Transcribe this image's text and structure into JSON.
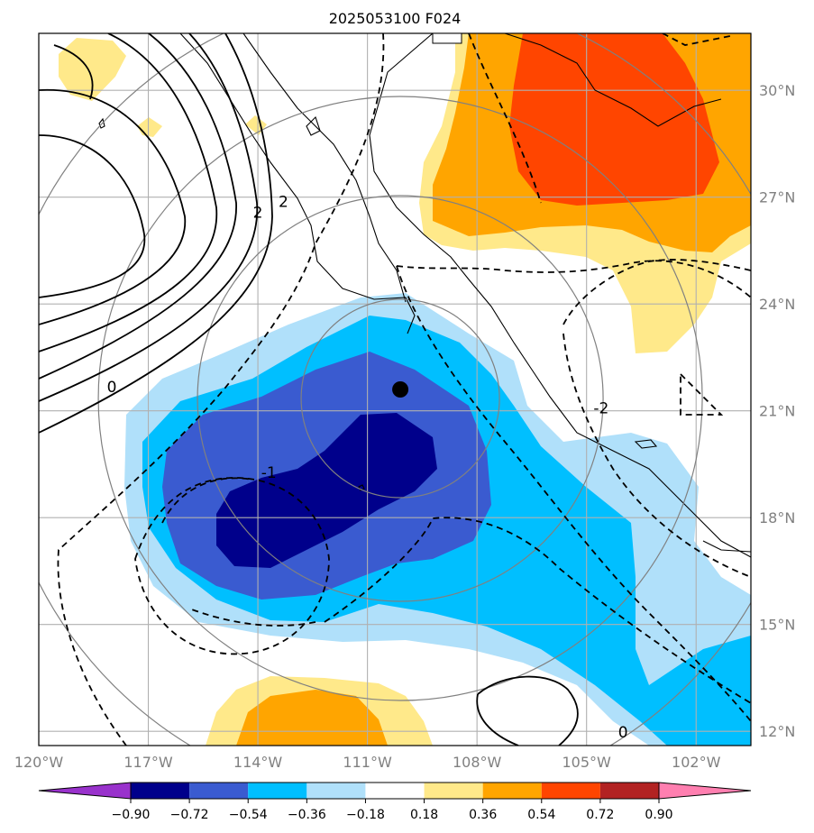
{
  "title": "2025053100 F024",
  "map": {
    "lon_range": [
      -120,
      -100.5
    ],
    "lat_range": [
      11.6,
      31.6
    ],
    "gridlines": true,
    "storm_center": {
      "lon": -110.1,
      "lat": 21.6
    },
    "lat_ticks": [
      {
        "value": 12,
        "label": "12°N"
      },
      {
        "value": 15,
        "label": "15°N"
      },
      {
        "value": 18,
        "label": "18°N"
      },
      {
        "value": 21,
        "label": "21°N"
      },
      {
        "value": 24,
        "label": "24°N"
      },
      {
        "value": 27,
        "label": "27°N"
      },
      {
        "value": 30,
        "label": "30°N"
      }
    ],
    "lon_ticks": [
      {
        "value": -120,
        "label": "120°W"
      },
      {
        "value": -117,
        "label": "117°W"
      },
      {
        "value": -114,
        "label": "114°W"
      },
      {
        "value": -111,
        "label": "111°W"
      },
      {
        "value": -108,
        "label": "108°W"
      },
      {
        "value": -105,
        "label": "105°W"
      },
      {
        "value": -102,
        "label": "102°W"
      }
    ],
    "contour_labels": [
      {
        "text": "2",
        "lon": -114.0,
        "lat": 26.5
      },
      {
        "text": "2",
        "lon": -113.3,
        "lat": 26.8
      },
      {
        "text": "0",
        "lon": -118.0,
        "lat": 21.6
      },
      {
        "text": "-1",
        "lon": -113.7,
        "lat": 19.2
      },
      {
        "text": "-2",
        "lon": -104.6,
        "lat": 21.0
      },
      {
        "text": "0",
        "lon": -104.0,
        "lat": 11.9
      }
    ]
  },
  "colorbar": {
    "levels": [
      "−0.90",
      "−0.72",
      "−0.54",
      "−0.36",
      "−0.18",
      "0.18",
      "0.36",
      "0.54",
      "0.72",
      "0.90"
    ],
    "colors": [
      "#9932cc",
      "#00008b",
      "#3a5bd0",
      "#00bfff",
      "#b0e0fa",
      "#ffffff",
      "#ffe98a",
      "#ffa500",
      "#ff4500",
      "#b22222",
      "#ff7fb0"
    ]
  },
  "colors": {
    "fill_vneg3": "#00008b",
    "fill_vneg2": "#3a5bd0",
    "fill_vneg1": "#00bfff",
    "fill_neg0": "#b0e0fa",
    "fill_pos1": "#ffe98a",
    "fill_pos2": "#ffa500",
    "fill_pos3": "#ff4500",
    "range_rings": "#808080",
    "gridline": "#b0b0b0"
  }
}
